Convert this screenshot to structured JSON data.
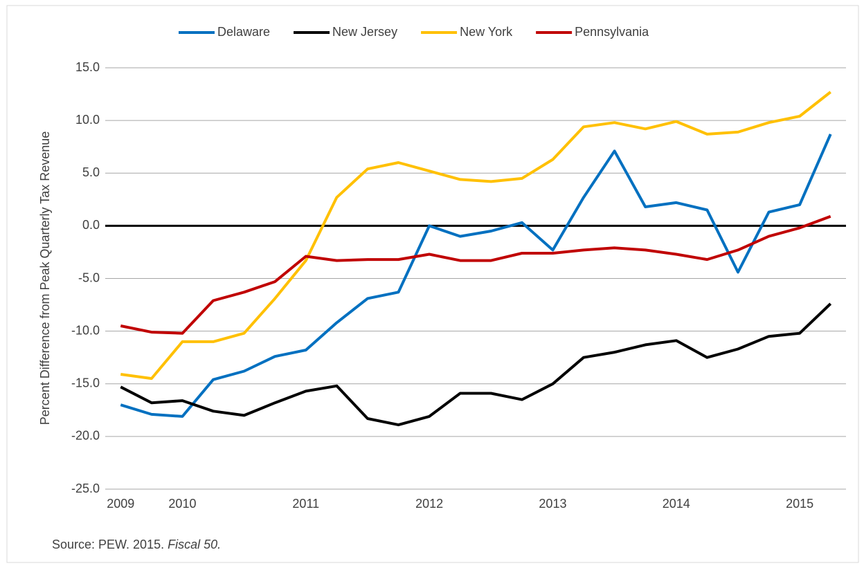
{
  "chart_data": {
    "type": "line",
    "y_label": "Percent Difference from Peak Quarterly Tax Revenue",
    "source": {
      "text": "Source: PEW. 2015. ",
      "italic": "Fiscal 50."
    },
    "categories": [
      "2009",
      null,
      "2010",
      null,
      null,
      null,
      "2011",
      null,
      null,
      null,
      "2012",
      null,
      null,
      null,
      "2013",
      null,
      null,
      null,
      "2014",
      null,
      null,
      null,
      "2015",
      null
    ],
    "series": [
      {
        "name": "Delaware",
        "color": "#0070c0",
        "values": [
          -17.0,
          -17.9,
          -18.1,
          -14.6,
          -13.8,
          -12.4,
          -11.8,
          -9.2,
          -6.9,
          -6.3,
          0.0,
          -1.0,
          -0.5,
          0.3,
          -2.3,
          2.7,
          7.1,
          1.8,
          2.2,
          1.5,
          -4.4,
          1.3,
          2.0,
          8.7
        ]
      },
      {
        "name": "New Jersey",
        "color": "#000000",
        "values": [
          -15.3,
          -16.8,
          -16.6,
          -17.6,
          -18.0,
          -16.8,
          -15.7,
          -15.2,
          -18.3,
          -18.9,
          -18.1,
          -15.9,
          -15.9,
          -16.5,
          -15.0,
          -12.5,
          -12.0,
          -11.3,
          -10.9,
          -12.5,
          -11.7,
          -10.5,
          -10.2,
          -7.4
        ]
      },
      {
        "name": "New York",
        "color": "#ffc000",
        "values": [
          -14.1,
          -14.5,
          -11.0,
          -11.0,
          -10.2,
          -6.9,
          -3.3,
          2.7,
          5.4,
          6.0,
          5.2,
          4.4,
          4.2,
          4.5,
          6.3,
          9.4,
          9.8,
          9.2,
          9.9,
          8.7,
          8.9,
          9.8,
          10.4,
          12.7
        ]
      },
      {
        "name": "Pennsylvania",
        "color": "#c00000",
        "values": [
          -9.5,
          -10.1,
          -10.2,
          -7.1,
          -6.3,
          -5.3,
          -2.9,
          -3.3,
          -3.2,
          -3.2,
          -2.7,
          -3.3,
          -3.3,
          -2.6,
          -2.6,
          -2.3,
          -2.1,
          -2.3,
          -2.7,
          -3.2,
          -2.3,
          -1.0,
          -0.2,
          0.9
        ]
      }
    ],
    "ylim": [
      -25,
      15
    ],
    "yticks": [
      {
        "value": -25,
        "label": "-25.0"
      },
      {
        "value": -20,
        "label": "-20.0"
      },
      {
        "value": -15,
        "label": "-15.0"
      },
      {
        "value": -10,
        "label": "-10.0"
      },
      {
        "value": -5,
        "label": "-5.0"
      },
      {
        "value": 0,
        "label": "0.0"
      },
      {
        "value": 5,
        "label": "5.0"
      },
      {
        "value": 10,
        "label": "10.0"
      },
      {
        "value": 15,
        "label": "15.0"
      }
    ],
    "grid": true,
    "legend": "top"
  }
}
